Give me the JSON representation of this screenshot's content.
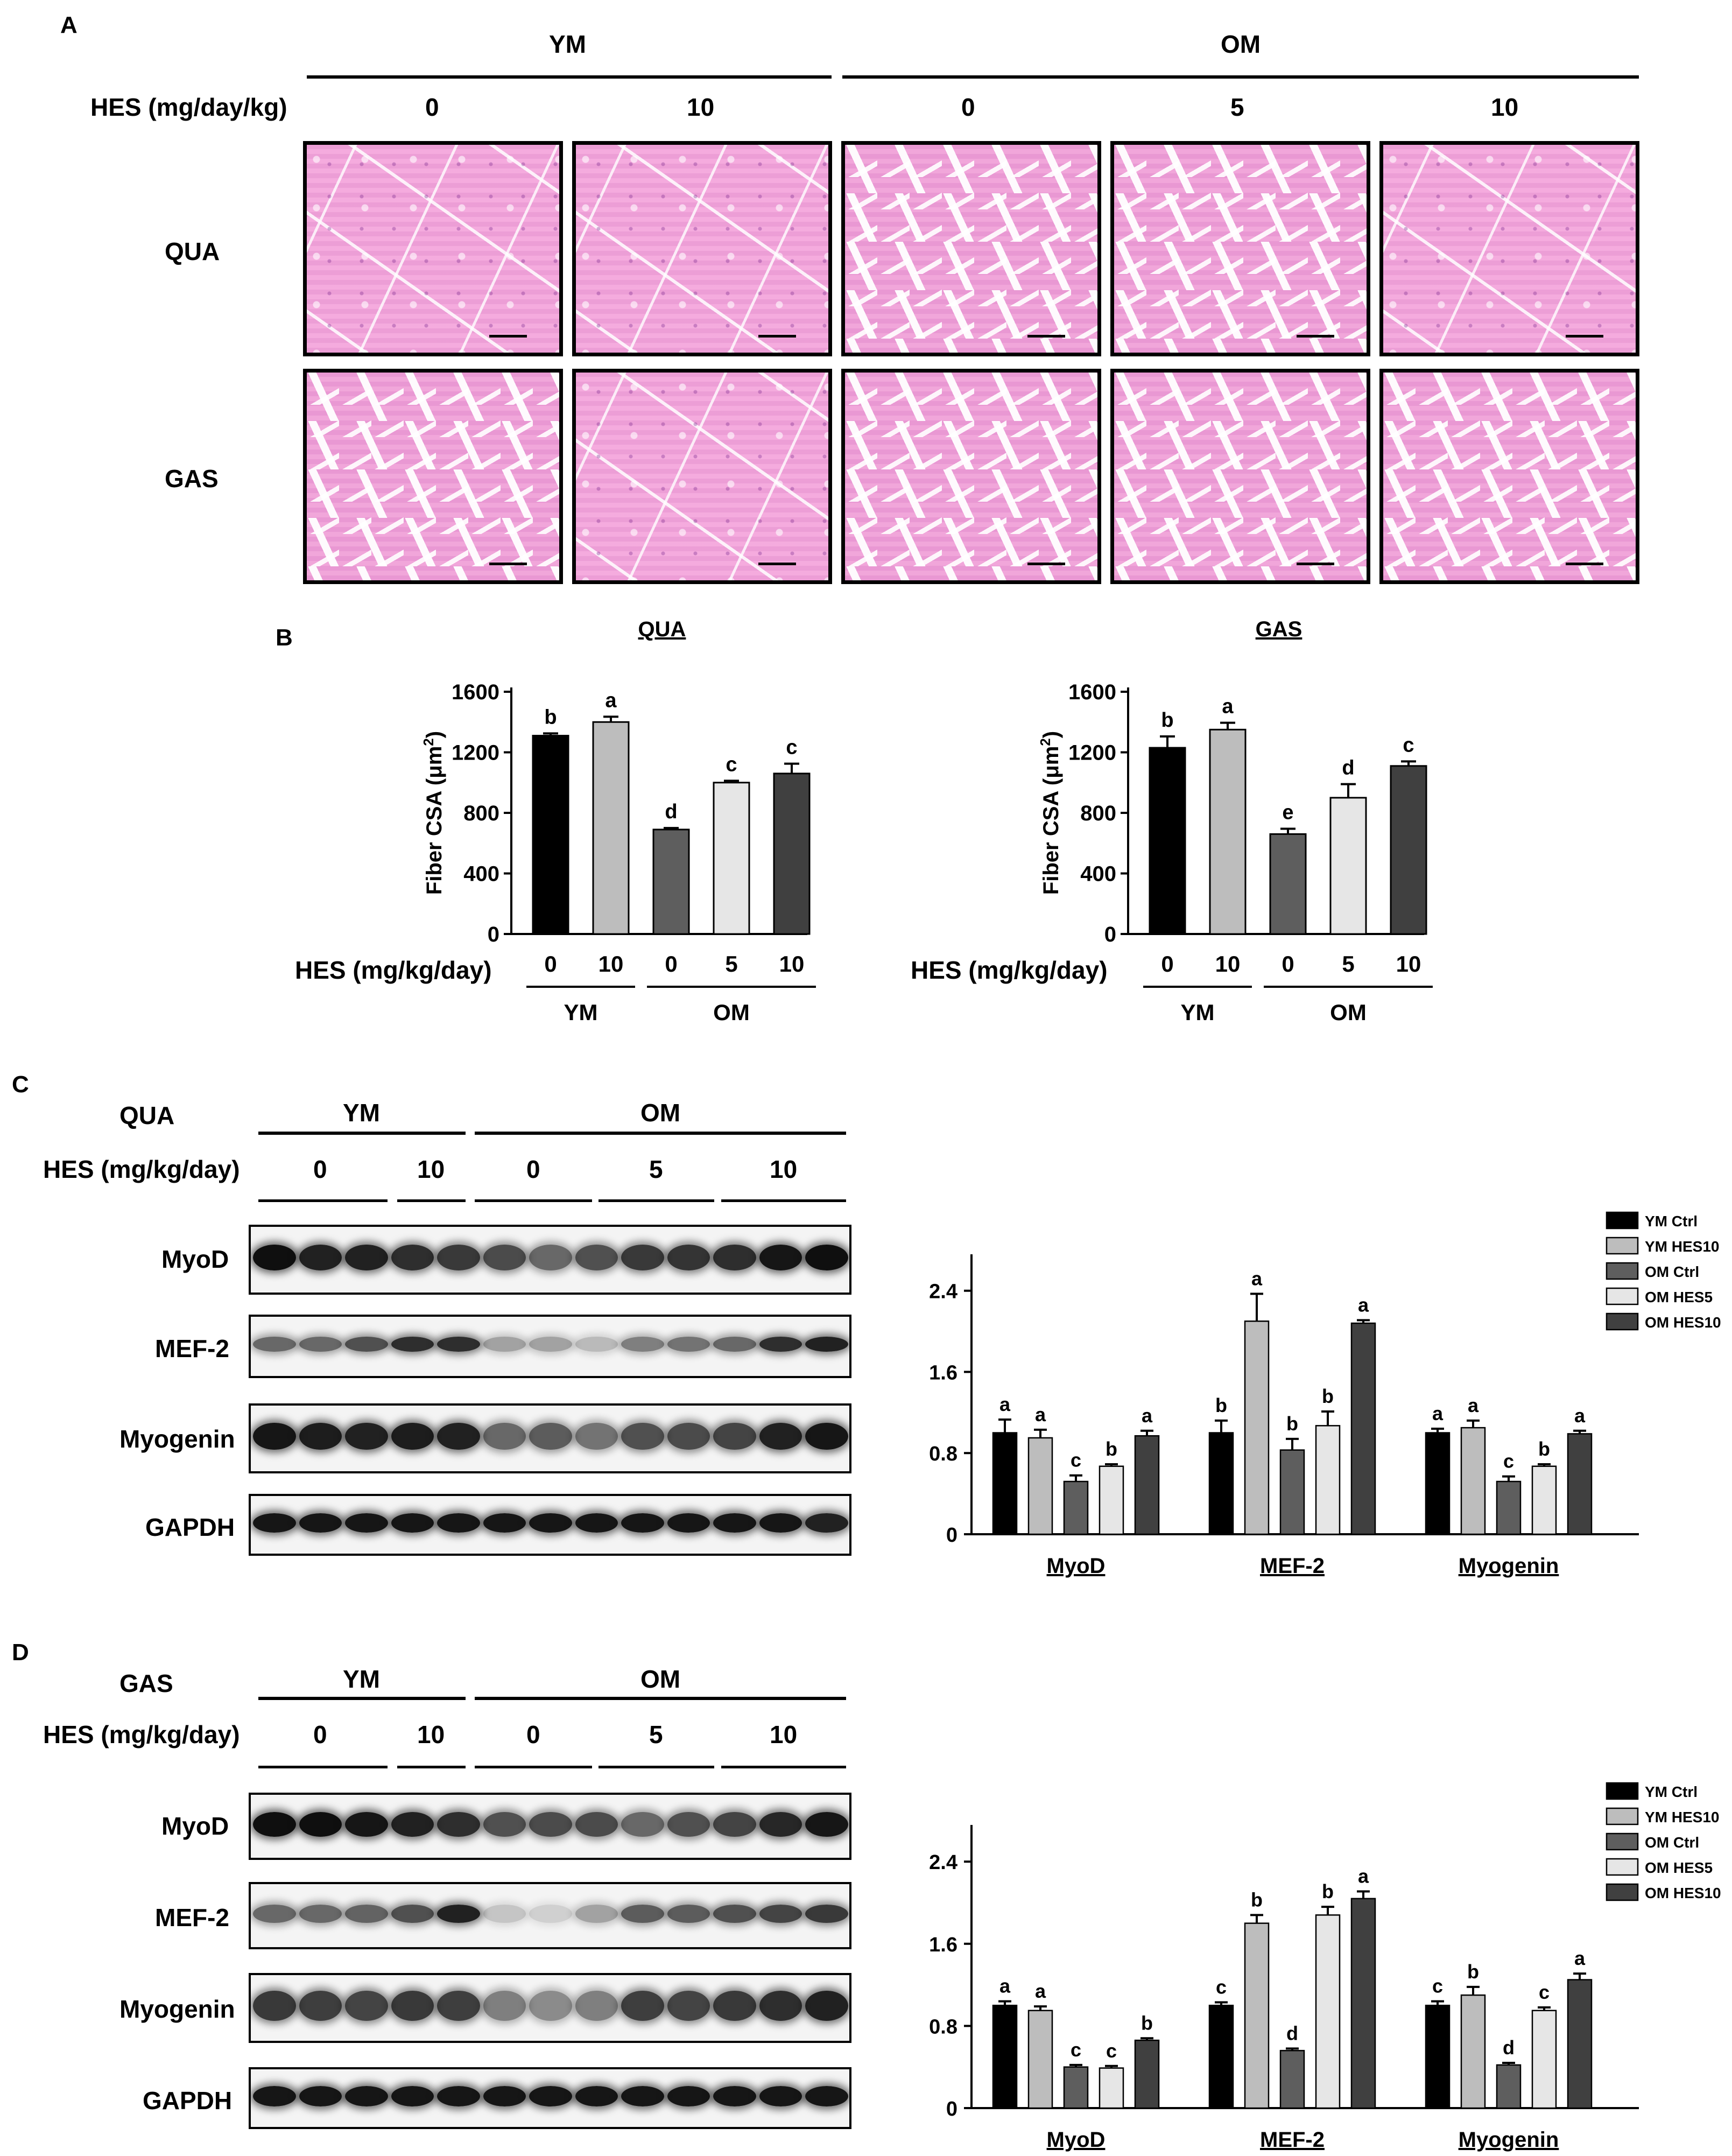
{
  "panel_a": {
    "label": "A",
    "group_young": "YM",
    "group_old": "OM",
    "dose_header": "HES (mg/day/kg)",
    "doses": [
      "0",
      "10",
      "0",
      "5",
      "10"
    ],
    "rows": [
      "QUA",
      "GAS"
    ]
  },
  "panel_b": {
    "label": "B",
    "dose_header": "HES (mg/kg/day)",
    "doses": [
      "0",
      "10",
      "0",
      "5",
      "10"
    ],
    "group_young": "YM",
    "group_old": "OM"
  },
  "panel_c": {
    "label": "C",
    "tissue": "QUA",
    "group_young": "YM",
    "group_old": "OM",
    "dose_header": "HES (mg/kg/day)",
    "doses": [
      "0",
      "10",
      "0",
      "5",
      "10"
    ],
    "blot_rows": [
      "MyoD",
      "MEF-2",
      "Myogenin",
      "GAPDH"
    ]
  },
  "panel_d": {
    "label": "D",
    "tissue": "GAS",
    "group_young": "YM",
    "group_old": "OM",
    "dose_header": "HES (mg/kg/day)",
    "doses": [
      "0",
      "10",
      "0",
      "5",
      "10"
    ],
    "blot_rows": [
      "MyoD",
      "MEF-2",
      "Myogenin",
      "GAPDH"
    ]
  },
  "colors": {
    "YM Ctrl": "#000000",
    "YM HES10": "#bdbdbd",
    "OM Ctrl": "#5e5e5e",
    "OM HES5": "#e6e6e6",
    "OM HES10": "#404040"
  },
  "chart_data": [
    {
      "id": "csa_qua",
      "type": "bar",
      "title": "QUA",
      "ylabel": "Fiber CSA (μm²)",
      "ylim": [
        0,
        1600
      ],
      "yticks": [
        0,
        400,
        800,
        1200,
        1600
      ],
      "categories": [
        "0",
        "10",
        "0",
        "5",
        "10"
      ],
      "values": [
        1310,
        1400,
        690,
        1000,
        1060
      ],
      "errors": [
        15,
        35,
        10,
        12,
        65
      ],
      "letters": [
        "b",
        "a",
        "d",
        "c",
        "c"
      ]
    },
    {
      "id": "csa_gas",
      "type": "bar",
      "title": "GAS",
      "ylabel": "Fiber CSA (μm²)",
      "ylim": [
        0,
        1600
      ],
      "yticks": [
        0,
        400,
        800,
        1200,
        1600
      ],
      "categories": [
        "0",
        "10",
        "0",
        "5",
        "10"
      ],
      "values": [
        1230,
        1350,
        660,
        900,
        1110
      ],
      "errors": [
        75,
        45,
        35,
        90,
        30
      ],
      "letters": [
        "b",
        "a",
        "e",
        "d",
        "c"
      ]
    },
    {
      "id": "blot_qua",
      "type": "bar",
      "ylim": [
        0,
        2.6
      ],
      "yticks": [
        0,
        0.8,
        1.6,
        2.4
      ],
      "categories": [
        "MyoD",
        "MEF-2",
        "Myogenin"
      ],
      "series": [
        {
          "name": "YM Ctrl",
          "values": [
            1.0,
            1.0,
            1.0
          ],
          "errors": [
            0.13,
            0.12,
            0.04
          ],
          "letters": [
            "a",
            "b",
            "a"
          ]
        },
        {
          "name": "YM HES10",
          "values": [
            0.95,
            2.1,
            1.05
          ],
          "errors": [
            0.08,
            0.27,
            0.07
          ],
          "letters": [
            "a",
            "a",
            "a"
          ]
        },
        {
          "name": "OM Ctrl",
          "values": [
            0.52,
            0.83,
            0.52
          ],
          "errors": [
            0.06,
            0.11,
            0.05
          ],
          "letters": [
            "c",
            "b",
            "c"
          ]
        },
        {
          "name": "OM HES5",
          "values": [
            0.67,
            1.07,
            0.67
          ],
          "errors": [
            0.02,
            0.14,
            0.02
          ],
          "letters": [
            "b",
            "b",
            "b"
          ]
        },
        {
          "name": "OM HES10",
          "values": [
            0.97,
            2.08,
            0.99
          ],
          "errors": [
            0.05,
            0.03,
            0.03
          ],
          "letters": [
            "a",
            "a",
            "a"
          ]
        }
      ]
    },
    {
      "id": "blot_gas",
      "type": "bar",
      "ylim": [
        0,
        2.6
      ],
      "yticks": [
        0,
        0.8,
        1.6,
        2.4
      ],
      "categories": [
        "MyoD",
        "MEF-2",
        "Myogenin"
      ],
      "series": [
        {
          "name": "YM Ctrl",
          "values": [
            1.0,
            1.0,
            1.0
          ],
          "errors": [
            0.04,
            0.03,
            0.04
          ],
          "letters": [
            "a",
            "c",
            "c"
          ]
        },
        {
          "name": "YM HES10",
          "values": [
            0.95,
            1.8,
            1.1
          ],
          "errors": [
            0.04,
            0.08,
            0.08
          ],
          "letters": [
            "a",
            "b",
            "b"
          ]
        },
        {
          "name": "OM Ctrl",
          "values": [
            0.4,
            0.56,
            0.42
          ],
          "errors": [
            0.02,
            0.02,
            0.02
          ],
          "letters": [
            "c",
            "d",
            "d"
          ]
        },
        {
          "name": "OM HES5",
          "values": [
            0.39,
            1.88,
            0.95
          ],
          "errors": [
            0.02,
            0.08,
            0.03
          ],
          "letters": [
            "c",
            "b",
            "c"
          ]
        },
        {
          "name": "OM HES10",
          "values": [
            0.66,
            2.04,
            1.25
          ],
          "errors": [
            0.02,
            0.07,
            0.06
          ],
          "letters": [
            "b",
            "a",
            "a"
          ]
        }
      ]
    }
  ]
}
